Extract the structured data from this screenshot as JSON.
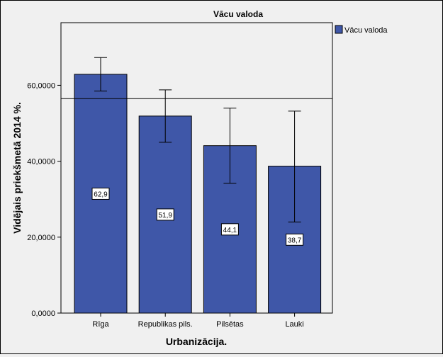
{
  "chart_data": {
    "type": "bar",
    "title": "Vācu valoda",
    "xlabel": "Urbanizācija.",
    "ylabel": "Vidējais priekšmetā 2014 %.",
    "categories": [
      "Rīga",
      "Republikas pils.",
      "Pilsētas",
      "Lauki"
    ],
    "series": [
      {
        "name": "Vācu valoda",
        "values": [
          62.9,
          51.9,
          44.1,
          38.7
        ],
        "value_labels": [
          "62,9",
          "51,9",
          "44,1",
          "38,7"
        ],
        "error_low": [
          58.5,
          45.0,
          34.2,
          24.0
        ],
        "error_high": [
          67.3,
          58.8,
          54.0,
          53.2
        ],
        "color": "#3f57a8"
      }
    ],
    "reference_line": 56.5,
    "ylim": [
      0,
      76.5
    ],
    "yticks": [
      0,
      20,
      40,
      60
    ],
    "ytick_labels": [
      "0,0000",
      "20,0000",
      "40,0000",
      "60,0000"
    ],
    "grid": false,
    "legend_position": "top-right"
  }
}
